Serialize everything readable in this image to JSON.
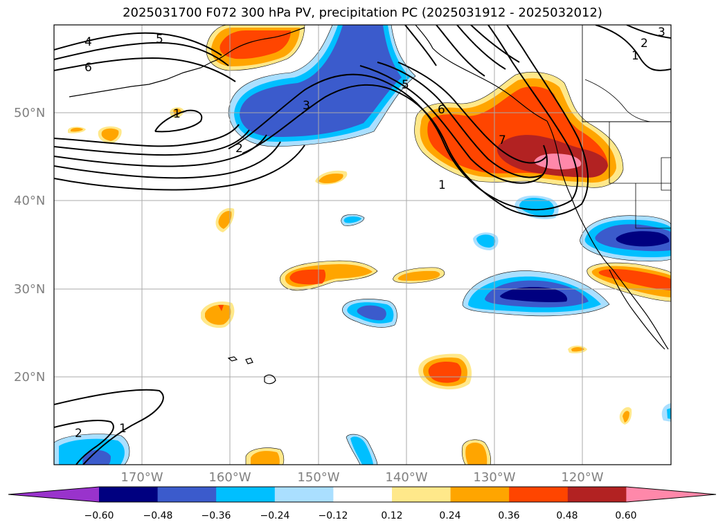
{
  "title": "2025031700 F072 300 hPa PV, precipitation PC (2025031912 - 2025032012)",
  "lat_labels": [
    "50°N",
    "40°N",
    "30°N",
    "20°N"
  ],
  "lon_labels": [
    "170°W",
    "160°W",
    "150°W",
    "140°W",
    "130°W",
    "120°W"
  ],
  "colorbar": {
    "tick_labels": [
      "−0.60",
      "−0.48",
      "−0.36",
      "−0.24",
      "−0.12",
      "0.12",
      "0.24",
      "0.36",
      "0.48",
      "0.60"
    ],
    "colors": [
      "#9933cc",
      "#000080",
      "#3b5bcc",
      "#00bfff",
      "#aadfff",
      "#ffffff",
      "#ffe88a",
      "#ffa500",
      "#ff4500",
      "#b22222",
      "#ff88aa"
    ]
  },
  "contour_labels": [
    "4",
    "5",
    "6",
    "1",
    "3",
    "2",
    "5",
    "6",
    "7",
    "1",
    "2",
    "3",
    "1",
    "2",
    "1"
  ],
  "colors": {
    "dark_blue": "#000080",
    "royal_blue": "#3b5bcc",
    "sky_blue": "#00bfff",
    "light_blue": "#aadfff",
    "light_yellow": "#ffe88a",
    "orange": "#ffa500",
    "red_orange": "#ff4500",
    "dark_red": "#b22222",
    "pink": "#ff88aa"
  }
}
